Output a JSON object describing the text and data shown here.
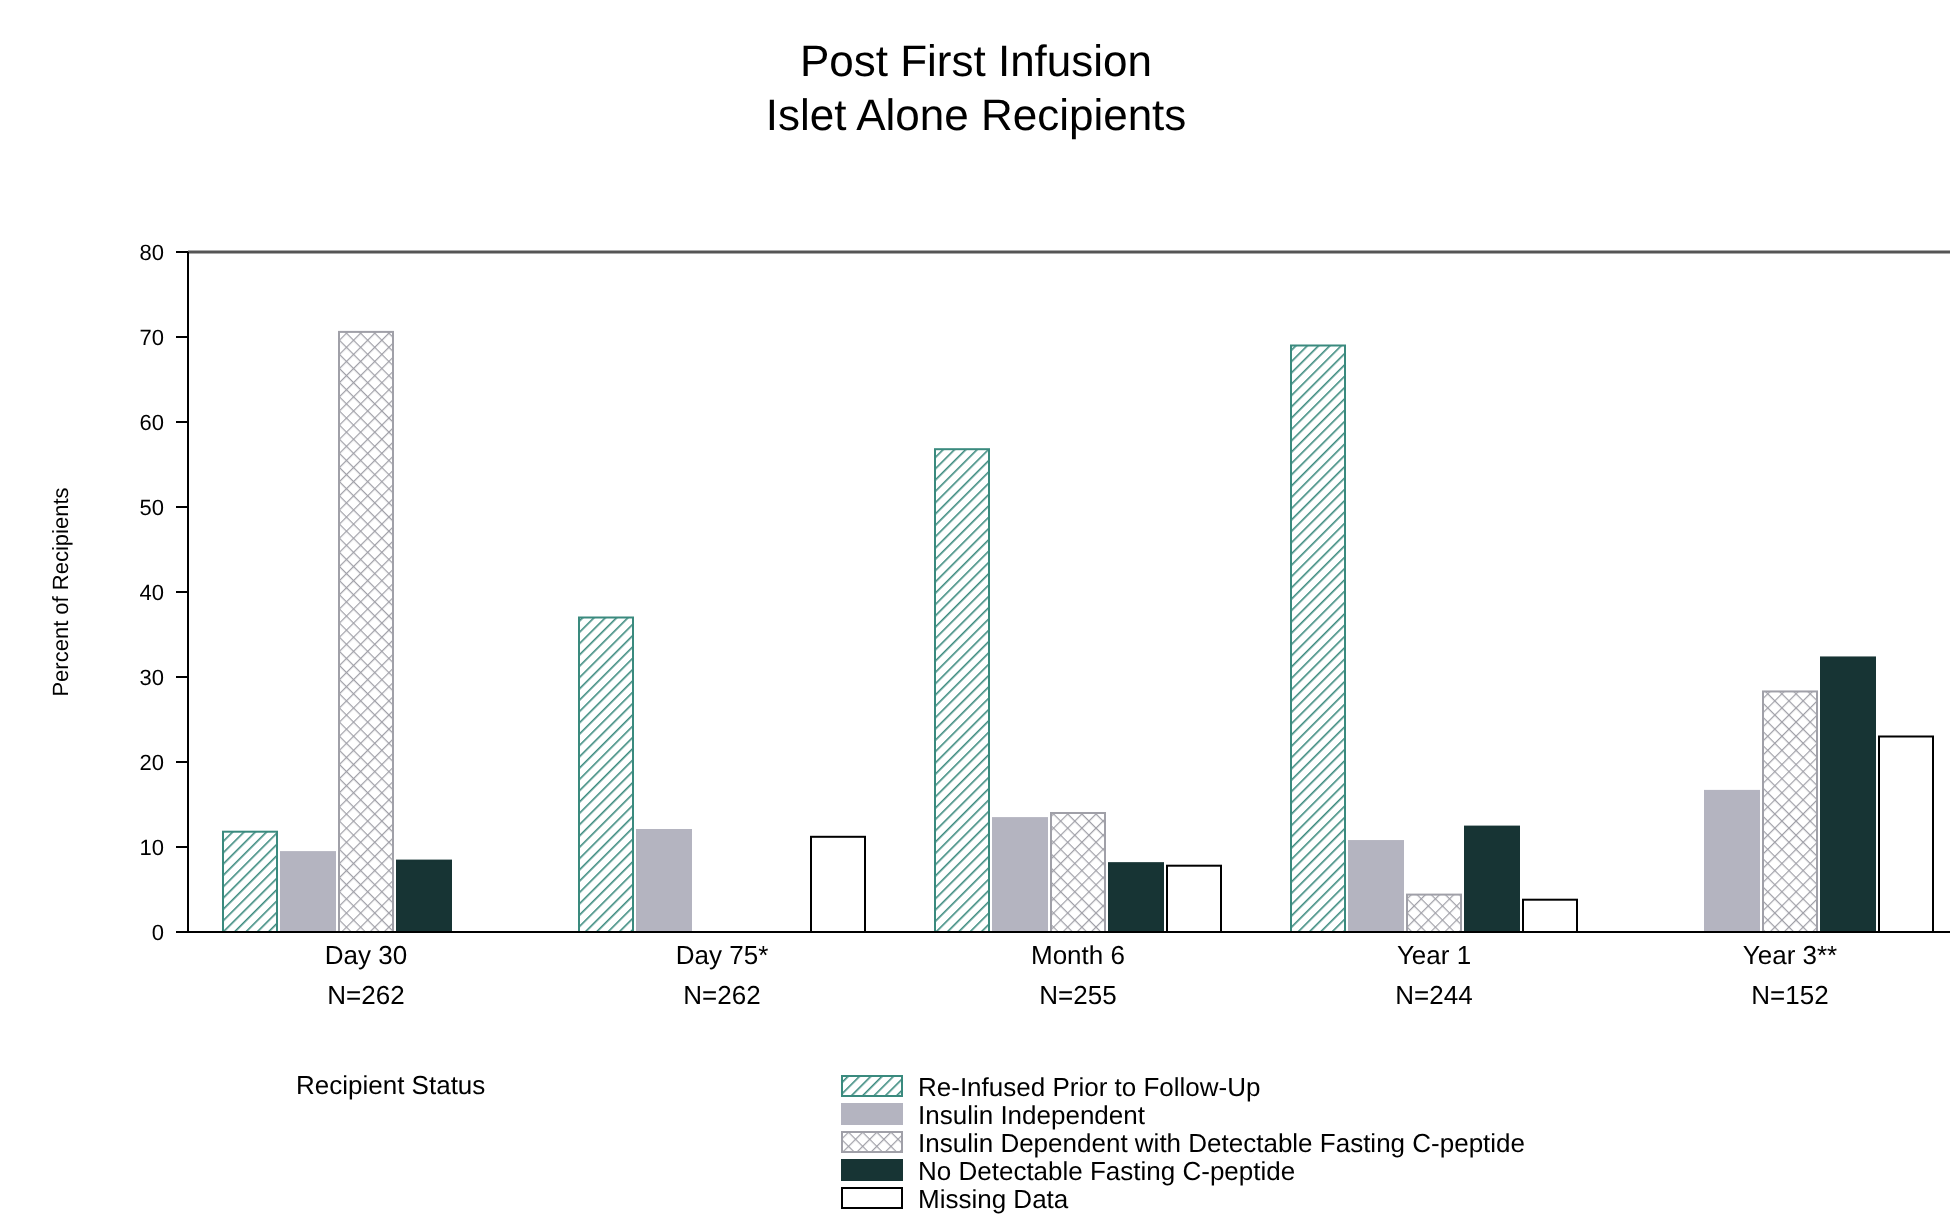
{
  "chart_data": {
    "type": "bar",
    "title": "Post First Infusion",
    "subtitle": "Islet Alone Recipients",
    "ylabel": "Percent of Recipients",
    "legend_title": "Recipient Status",
    "categories": [
      "Day 30\nN=262",
      "Day 75*\nN=262",
      "Month 6\nN=255",
      "Year 1\nN=244",
      "Year 3**\nN=152"
    ],
    "series": [
      {
        "name": "Re-Infused Prior to Follow-Up",
        "color": "#3a8a7e",
        "values": [
          11.8,
          37,
          56.8,
          69,
          null
        ]
      },
      {
        "name": "Insulin Independent",
        "color": "#b4b4c0",
        "values": [
          9.4,
          12,
          13.4,
          10.7,
          16.6
        ]
      },
      {
        "name": "Insulin Dependent with Detectable Fasting C-peptide",
        "color": "#a0a0a8",
        "values": [
          70.6,
          null,
          14,
          4.4,
          28.3
        ]
      },
      {
        "name": "No Detectable Fasting C-peptide",
        "color": "#173434",
        "values": [
          8.4,
          null,
          8.1,
          12.4,
          32.3
        ]
      },
      {
        "name": "Missing Data",
        "color": "#ffffff",
        "values": [
          null,
          11.2,
          7.8,
          3.8,
          23
        ]
      }
    ],
    "ylim": [
      0,
      80
    ],
    "yticks": [
      0,
      10,
      20,
      30,
      40,
      50,
      60,
      70,
      80
    ],
    "grid": false,
    "legend": "bottom"
  }
}
